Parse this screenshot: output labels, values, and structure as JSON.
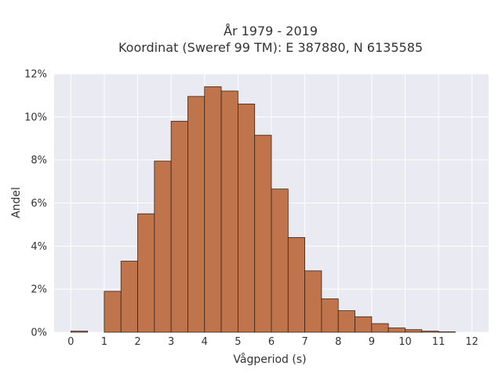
{
  "chart_data": {
    "type": "bar",
    "title_lines": [
      "År 1979 - 2019",
      "Koordinat (Sweref 99 TM): E 387880, N 6135585"
    ],
    "xlabel": "Vågperiod (s)",
    "ylabel": "Andel",
    "x_ticks": [
      "0",
      "1",
      "2",
      "3",
      "4",
      "5",
      "6",
      "7",
      "8",
      "9",
      "10",
      "11",
      "12"
    ],
    "y_ticks": [
      "0%",
      "2%",
      "4%",
      "6%",
      "8%",
      "10%",
      "12%"
    ],
    "xlim": [
      -0.5,
      12.5
    ],
    "ylim": [
      0,
      12
    ],
    "bin_width": 0.5,
    "bins_start": [
      0,
      1,
      1.5,
      2,
      2.5,
      3,
      3.5,
      4,
      4.5,
      5,
      5.5,
      6,
      6.5,
      7,
      7.5,
      8,
      8.5,
      9,
      9.5,
      10,
      10.5,
      11
    ],
    "values": [
      0.05,
      1.9,
      3.3,
      5.5,
      7.95,
      9.8,
      10.95,
      11.4,
      11.2,
      10.6,
      9.15,
      6.65,
      4.4,
      2.85,
      1.55,
      1.0,
      0.72,
      0.4,
      0.2,
      0.12,
      0.05,
      0.02
    ],
    "grid": true,
    "colors": {
      "bar": "#C0744B",
      "bar_edge": "#3b2418",
      "plot_bg": "#EAEAF2",
      "grid": "#ffffff"
    }
  }
}
